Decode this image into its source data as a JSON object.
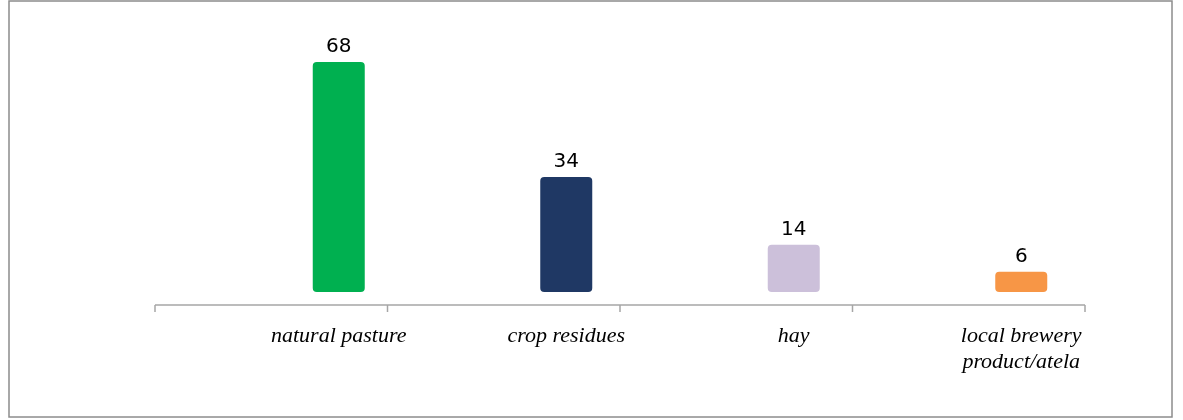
{
  "chart_data": {
    "type": "bar",
    "categories": [
      "natural pasture",
      "crop residues",
      "hay",
      "local brewery product/atela"
    ],
    "values": [
      68,
      34,
      14,
      6
    ],
    "colors": [
      "#00b050",
      "#1f3864",
      "#ccc0da",
      "#f79646"
    ],
    "data_labels": true
  }
}
